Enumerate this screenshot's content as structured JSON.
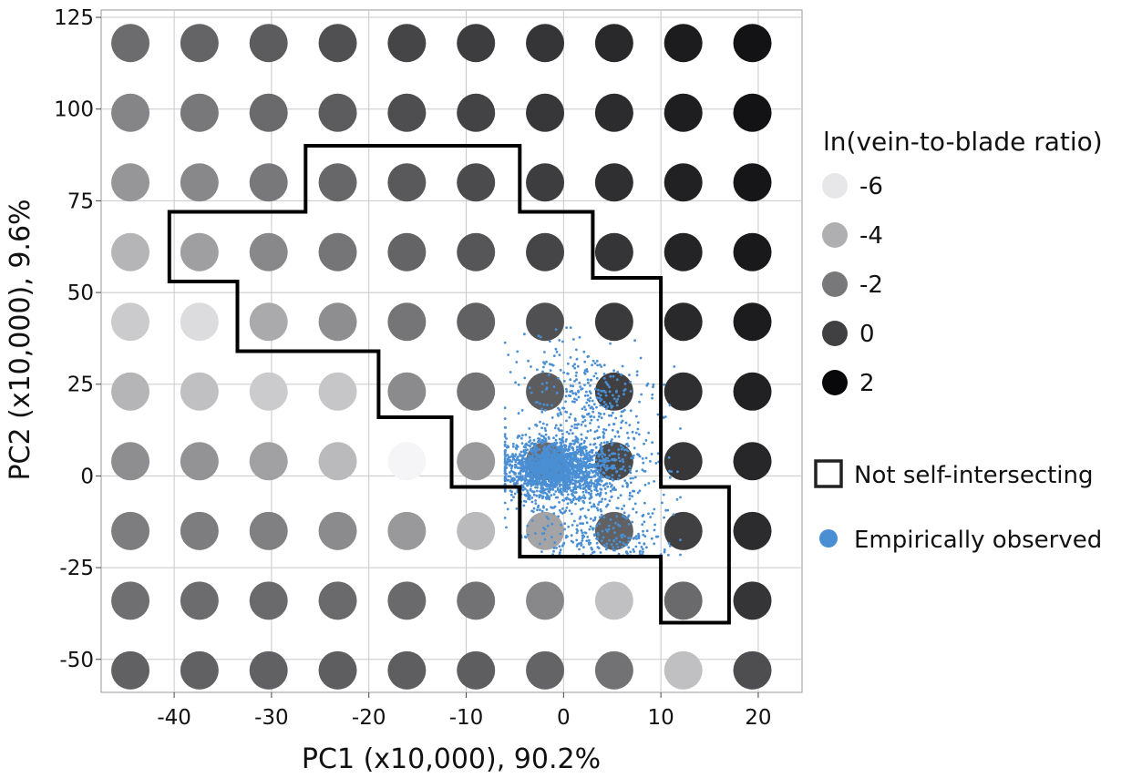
{
  "chart_data": {
    "type": "scatter",
    "xlabel": "PC1 (x10,000), 90.2%",
    "ylabel": "PC2 (x10,000), 9.6%",
    "xlim": [
      -47.5,
      24.5
    ],
    "ylim": [
      -59,
      127
    ],
    "xticks": [
      -40,
      -30,
      -20,
      -10,
      0,
      10,
      20
    ],
    "yticks": [
      -50,
      -25,
      0,
      25,
      50,
      75,
      100,
      125
    ],
    "xtick_labels": [
      "-40",
      "-30",
      "-20",
      "-10",
      "0",
      "10",
      "20"
    ],
    "ytick_labels": [
      "-50",
      "-25",
      "0",
      "25",
      "50",
      "75",
      "100",
      "125"
    ],
    "grid": true,
    "grid_x_centers": [
      -44.5,
      -37.4,
      -30.3,
      -23.2,
      -16.1,
      -9.0,
      -1.9,
      5.2,
      12.3,
      19.4
    ],
    "grid_y_centers": [
      118,
      99,
      80,
      61,
      42,
      23,
      4,
      -15,
      -34,
      -53
    ],
    "shade_values": [
      [
        -1.6,
        -1.3,
        -1.0,
        -0.6,
        -0.2,
        0.1,
        0.4,
        0.8,
        1.3,
        1.6
      ],
      [
        -2.5,
        -2.0,
        -1.5,
        -1.0,
        -0.5,
        -0.1,
        0.3,
        0.7,
        1.2,
        1.6
      ],
      [
        -3.1,
        -2.6,
        -2.0,
        -1.4,
        -0.9,
        -0.4,
        0.1,
        0.6,
        1.1,
        1.5
      ],
      [
        -4.2,
        -3.4,
        -2.6,
        -1.9,
        -1.3,
        -0.8,
        -0.2,
        0.4,
        1.0,
        1.4
      ],
      [
        -5.0,
        -5.6,
        -3.8,
        -2.8,
        -1.9,
        -1.2,
        -0.6,
        0.2,
        0.8,
        1.3
      ],
      [
        -4.2,
        -4.6,
        -5.0,
        -4.8,
        -2.7,
        -1.8,
        -1.0,
        0.0,
        0.6,
        1.1
      ],
      [
        -2.8,
        -3.0,
        -3.5,
        -4.4,
        -6.5,
        -3.2,
        -1.5,
        -0.4,
        0.3,
        0.9
      ],
      [
        -2.2,
        -2.2,
        -2.3,
        -2.7,
        -3.2,
        -4.4,
        -3.6,
        -1.2,
        0.0,
        0.7
      ],
      [
        -1.7,
        -1.6,
        -1.5,
        -1.5,
        -1.5,
        -1.8,
        -2.6,
        -4.6,
        -1.5,
        0.4
      ],
      [
        -1.2,
        -1.2,
        -1.2,
        -1.1,
        -1.1,
        -1.1,
        -1.3,
        -1.8,
        -4.6,
        -0.5
      ]
    ],
    "boundary_polygon": [
      [
        -40.5,
        72
      ],
      [
        -26.5,
        72
      ],
      [
        -26.5,
        90
      ],
      [
        -4.5,
        90
      ],
      [
        -4.5,
        72
      ],
      [
        3,
        72
      ],
      [
        3,
        54
      ],
      [
        10,
        54
      ],
      [
        10,
        -3
      ],
      [
        17,
        -3
      ],
      [
        17,
        -40
      ],
      [
        10,
        -40
      ],
      [
        10,
        -22
      ],
      [
        -4.5,
        -22
      ],
      [
        -4.5,
        -3
      ],
      [
        -11.5,
        -3
      ],
      [
        -11.5,
        16
      ],
      [
        -19,
        16
      ],
      [
        -19,
        34
      ],
      [
        -33.5,
        34
      ],
      [
        -33.5,
        53
      ],
      [
        -40.5,
        53
      ]
    ],
    "observed_cluster": {
      "core": [
        0,
        0
      ],
      "spread_x": 4.5,
      "spread_y": 7,
      "approx_extent_x": [
        -6,
        12
      ],
      "approx_extent_y": [
        -22,
        57
      ]
    },
    "legend": {
      "title": "ln(vein-to-blade ratio)",
      "shade_entries": [
        {
          "label": "-6",
          "value": -6
        },
        {
          "label": "-4",
          "value": -4
        },
        {
          "label": "-2",
          "value": -2
        },
        {
          "label": "0",
          "value": 0
        },
        {
          "label": "2",
          "value": 2
        }
      ],
      "boundary_label": "Not self-intersecting",
      "observed_label": "Empirically observed",
      "placement": "right"
    },
    "colors": {
      "observed": "#4a8fd4",
      "boundary": "#000000",
      "grid": "#c8c8c8",
      "axes_frame": "#999999"
    }
  }
}
